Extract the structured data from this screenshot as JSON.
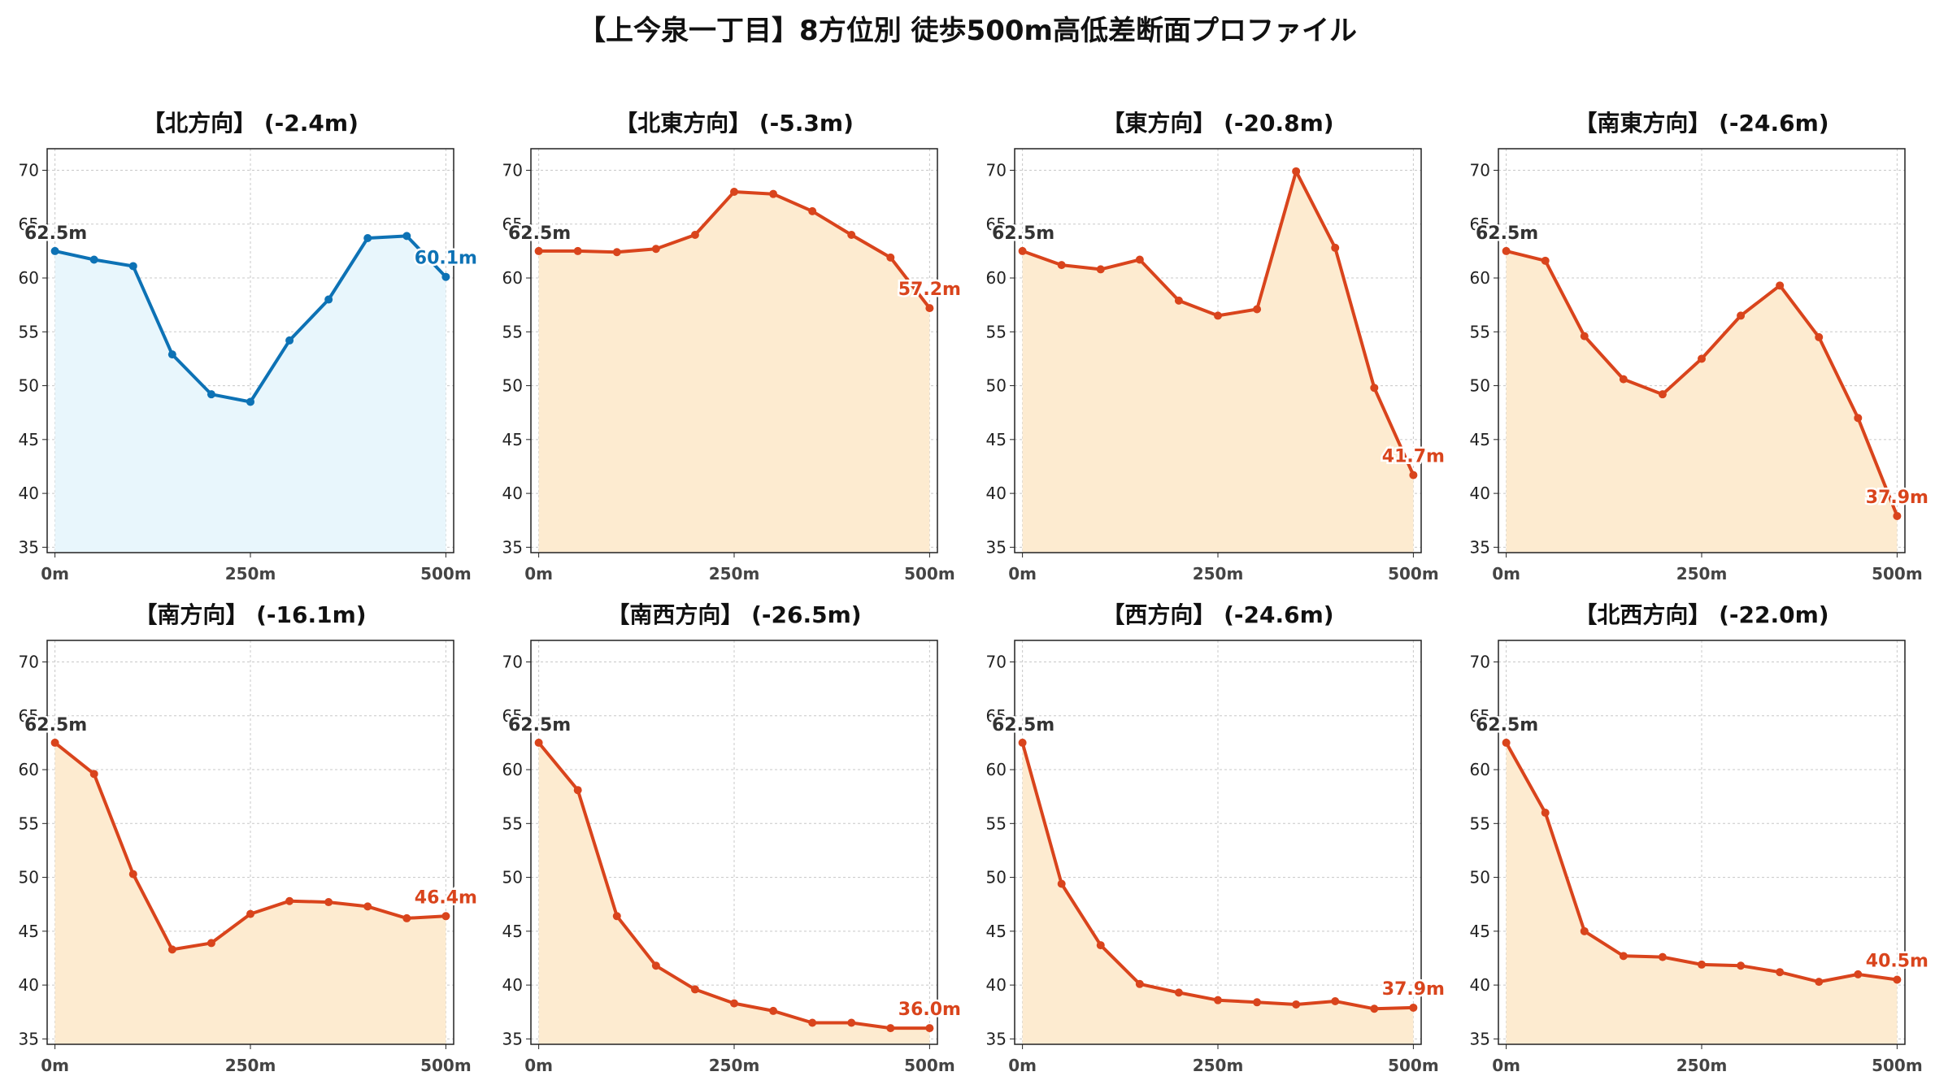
{
  "title": "【上今泉一丁目】8方位別 徒歩500m高低差断面プロファイル",
  "colors": {
    "up": "#0d72b5",
    "up_fill": "#e8f6fc",
    "down": "#d9441c",
    "down_fill": "#fdebd0",
    "start_label": "#333333",
    "grid": "#c8c8c8"
  },
  "chart_data": [
    {
      "type": "area",
      "title": "【北方向】 (-2.4m)",
      "trend": "up",
      "x": [
        0,
        50,
        100,
        150,
        200,
        250,
        300,
        350,
        400,
        450,
        500
      ],
      "y": [
        62.5,
        61.7,
        61.1,
        52.9,
        49.2,
        48.5,
        54.2,
        58.0,
        63.7,
        63.9,
        60.1
      ],
      "start_label": "62.5m",
      "end_label": "60.1m",
      "xticks": [
        "0m",
        "250m",
        "500m"
      ],
      "yticks": [
        35,
        40,
        45,
        50,
        55,
        60,
        65,
        70
      ],
      "xlim": [
        -10,
        510
      ],
      "ylim": [
        34.5,
        72
      ],
      "grid": true
    },
    {
      "type": "area",
      "title": "【北東方向】 (-5.3m)",
      "trend": "down",
      "x": [
        0,
        50,
        100,
        150,
        200,
        250,
        300,
        350,
        400,
        450,
        500
      ],
      "y": [
        62.5,
        62.5,
        62.4,
        62.7,
        64.0,
        68.0,
        67.8,
        66.2,
        64.0,
        61.9,
        57.2
      ],
      "start_label": "62.5m",
      "end_label": "57.2m",
      "xticks": [
        "0m",
        "250m",
        "500m"
      ],
      "yticks": [
        35,
        40,
        45,
        50,
        55,
        60,
        65,
        70
      ],
      "xlim": [
        -10,
        510
      ],
      "ylim": [
        34.5,
        72
      ],
      "grid": true
    },
    {
      "type": "area",
      "title": "【東方向】 (-20.8m)",
      "trend": "down",
      "x": [
        0,
        50,
        100,
        150,
        200,
        250,
        300,
        350,
        400,
        450,
        500
      ],
      "y": [
        62.5,
        61.2,
        60.8,
        61.7,
        57.9,
        56.5,
        57.1,
        69.9,
        62.8,
        49.8,
        41.7
      ],
      "start_label": "62.5m",
      "end_label": "41.7m",
      "xticks": [
        "0m",
        "250m",
        "500m"
      ],
      "yticks": [
        35,
        40,
        45,
        50,
        55,
        60,
        65,
        70
      ],
      "xlim": [
        -10,
        510
      ],
      "ylim": [
        34.5,
        72
      ],
      "grid": true
    },
    {
      "type": "area",
      "title": "【南東方向】 (-24.6m)",
      "trend": "down",
      "x": [
        0,
        50,
        100,
        150,
        200,
        250,
        300,
        350,
        400,
        450,
        500
      ],
      "y": [
        62.5,
        61.6,
        54.6,
        50.6,
        49.2,
        52.5,
        56.5,
        59.3,
        54.5,
        47.0,
        37.9
      ],
      "start_label": "62.5m",
      "end_label": "37.9m",
      "xticks": [
        "0m",
        "250m",
        "500m"
      ],
      "yticks": [
        35,
        40,
        45,
        50,
        55,
        60,
        65,
        70
      ],
      "xlim": [
        -10,
        510
      ],
      "ylim": [
        34.5,
        72
      ],
      "grid": true
    },
    {
      "type": "area",
      "title": "【南方向】 (-16.1m)",
      "trend": "down",
      "x": [
        0,
        50,
        100,
        150,
        200,
        250,
        300,
        350,
        400,
        450,
        500
      ],
      "y": [
        62.5,
        59.6,
        50.3,
        43.3,
        43.9,
        46.6,
        47.8,
        47.7,
        47.3,
        46.2,
        46.4
      ],
      "start_label": "62.5m",
      "end_label": "46.4m",
      "xticks": [
        "0m",
        "250m",
        "500m"
      ],
      "yticks": [
        35,
        40,
        45,
        50,
        55,
        60,
        65,
        70
      ],
      "xlim": [
        -10,
        510
      ],
      "ylim": [
        34.5,
        72
      ],
      "grid": true
    },
    {
      "type": "area",
      "title": "【南西方向】 (-26.5m)",
      "trend": "down",
      "x": [
        0,
        50,
        100,
        150,
        200,
        250,
        300,
        350,
        400,
        450,
        500
      ],
      "y": [
        62.5,
        58.1,
        46.4,
        41.8,
        39.6,
        38.3,
        37.6,
        36.5,
        36.5,
        36.0,
        36.0
      ],
      "start_label": "62.5m",
      "end_label": "36.0m",
      "xticks": [
        "0m",
        "250m",
        "500m"
      ],
      "yticks": [
        35,
        40,
        45,
        50,
        55,
        60,
        65,
        70
      ],
      "xlim": [
        -10,
        510
      ],
      "ylim": [
        34.5,
        72
      ],
      "grid": true
    },
    {
      "type": "area",
      "title": "【西方向】 (-24.6m)",
      "trend": "down",
      "x": [
        0,
        50,
        100,
        150,
        200,
        250,
        300,
        350,
        400,
        450,
        500
      ],
      "y": [
        62.5,
        49.4,
        43.7,
        40.1,
        39.3,
        38.6,
        38.4,
        38.2,
        38.5,
        37.8,
        37.9
      ],
      "start_label": "62.5m",
      "end_label": "37.9m",
      "xticks": [
        "0m",
        "250m",
        "500m"
      ],
      "yticks": [
        35,
        40,
        45,
        50,
        55,
        60,
        65,
        70
      ],
      "xlim": [
        -10,
        510
      ],
      "ylim": [
        34.5,
        72
      ],
      "grid": true
    },
    {
      "type": "area",
      "title": "【北西方向】 (-22.0m)",
      "trend": "down",
      "x": [
        0,
        50,
        100,
        150,
        200,
        250,
        300,
        350,
        400,
        450,
        500
      ],
      "y": [
        62.5,
        56.0,
        45.0,
        42.7,
        42.6,
        41.9,
        41.8,
        41.2,
        40.3,
        41.0,
        40.5
      ],
      "start_label": "62.5m",
      "end_label": "40.5m",
      "xticks": [
        "0m",
        "250m",
        "500m"
      ],
      "yticks": [
        35,
        40,
        45,
        50,
        55,
        60,
        65,
        70
      ],
      "xlim": [
        -10,
        510
      ],
      "ylim": [
        34.5,
        72
      ],
      "grid": true
    }
  ]
}
